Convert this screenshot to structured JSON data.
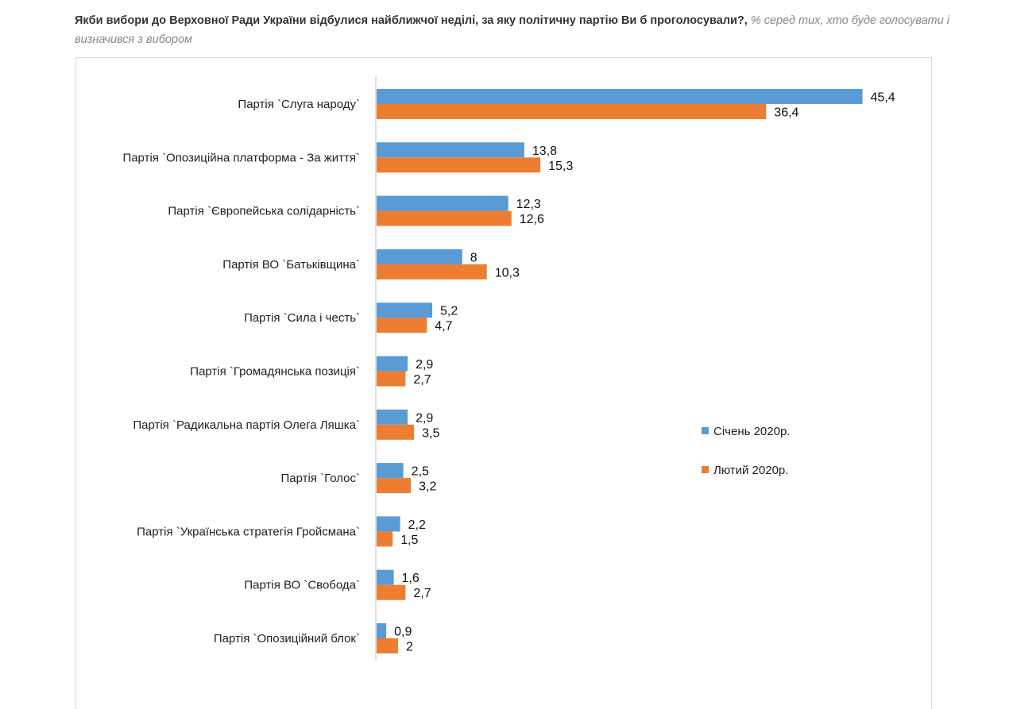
{
  "header": {
    "question": "Якби вибори до Верховної Ради України відбулися найближчої неділі, за яку політичну партію Ви б проголосували?,",
    "subtitle": "% серед тих, хто буде голосувати і визначився з вибором"
  },
  "chart_data": {
    "type": "bar",
    "orientation": "horizontal",
    "categories": [
      "Партія `Слуга народу`",
      "Партія `Опозиційна платформа - За життя`",
      "Партія `Європейська солідарність`",
      "Партія ВО `Батьківщина`",
      "Партія `Сила і честь`",
      "Партія `Громадянська позиція`",
      "Партія `Радикальна партія Олега Ляшка`",
      "Партія `Голос`",
      "Партія `Українська стратегія Гройсмана`",
      "Партія ВО `Свобода`",
      "Партія `Опозиційний блок`"
    ],
    "series": [
      {
        "name": "Січень 2020р.",
        "color": "#5B9BD5",
        "values": [
          45.4,
          13.8,
          12.3,
          8,
          5.2,
          2.9,
          2.9,
          2.5,
          2.2,
          1.6,
          0.9
        ],
        "labels": [
          "45,4",
          "13,8",
          "12,3",
          "8",
          "5,2",
          "2,9",
          "2,9",
          "2,5",
          "2,2",
          "1,6",
          "0,9"
        ]
      },
      {
        "name": "Лютий 2020р.",
        "color": "#ED7D31",
        "values": [
          36.4,
          15.3,
          12.6,
          10.3,
          4.7,
          2.7,
          3.5,
          3.2,
          1.5,
          2.7,
          2
        ],
        "labels": [
          "36,4",
          "15,3",
          "12,6",
          "10,3",
          "4,7",
          "2,7",
          "3,5",
          "3,2",
          "1,5",
          "2,7",
          "2"
        ]
      }
    ],
    "legend_position": "right",
    "grid": false
  }
}
